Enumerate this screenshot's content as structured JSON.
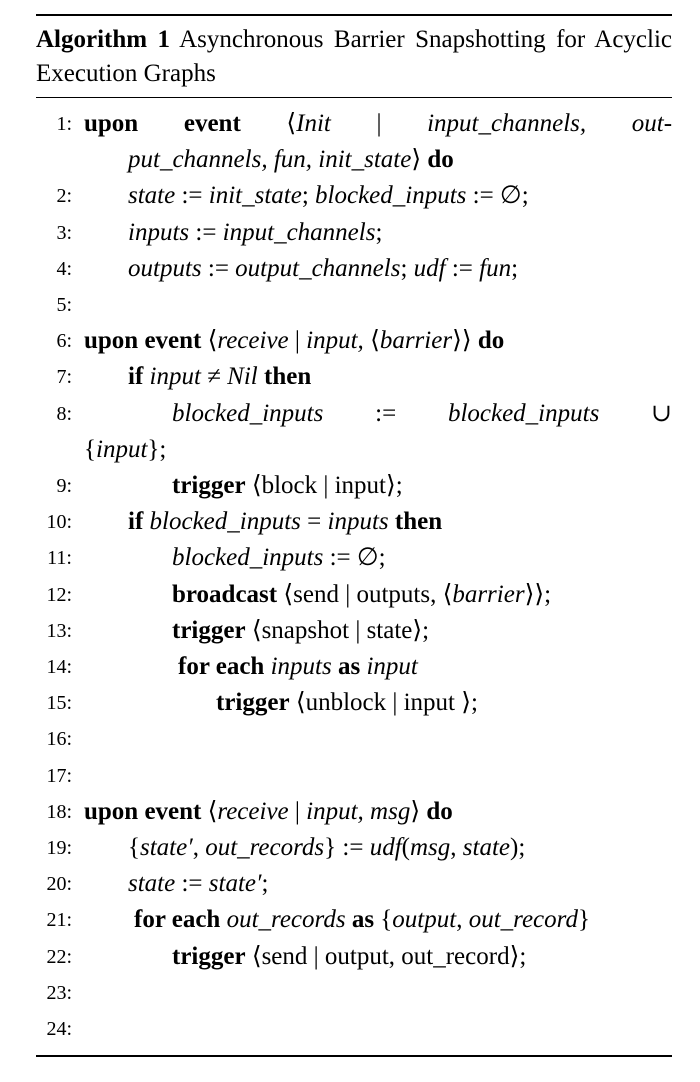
{
  "caption": {
    "label": "Algorithm 1",
    "title": "Asynchronous Barrier Snapshotting for Acyclic Execution Graphs"
  },
  "lines": [
    {
      "num": "1:",
      "indent": 0,
      "html_segments": [
        [
          "kw",
          "upon"
        ],
        [
          "sp",
          " "
        ],
        [
          "kw",
          "event"
        ],
        [
          "sp",
          " "
        ],
        [
          "t",
          "⟨"
        ],
        [
          "it",
          "Init"
        ],
        [
          "t",
          " | "
        ],
        [
          "it",
          "input_channels,"
        ],
        [
          "t",
          " "
        ],
        [
          "it",
          "out-"
        ]
      ],
      "wrap": [
        [
          "it",
          "put_channels, fun, init_state"
        ],
        [
          "t",
          "⟩ "
        ],
        [
          "kw",
          "do"
        ]
      ],
      "justify": true
    },
    {
      "num": "2:",
      "indent": 1,
      "html_segments": [
        [
          "it",
          "state"
        ],
        [
          "t",
          " := "
        ],
        [
          "it",
          "init_state"
        ],
        [
          "t",
          "; "
        ],
        [
          "it",
          "blocked_inputs"
        ],
        [
          "t",
          " := ∅;"
        ]
      ]
    },
    {
      "num": "3:",
      "indent": 1,
      "html_segments": [
        [
          "it",
          "inputs"
        ],
        [
          "t",
          " := "
        ],
        [
          "it",
          "input_channels"
        ],
        [
          "t",
          ";"
        ]
      ]
    },
    {
      "num": "4:",
      "indent": 1,
      "html_segments": [
        [
          "it",
          "outputs"
        ],
        [
          "t",
          " := "
        ],
        [
          "it",
          "output_channels"
        ],
        [
          "t",
          "; "
        ],
        [
          "it",
          "udf"
        ],
        [
          "t",
          " := "
        ],
        [
          "it",
          "fun"
        ],
        [
          "t",
          ";"
        ]
      ]
    },
    {
      "num": "5:",
      "indent": 0,
      "html_segments": []
    },
    {
      "num": "6:",
      "indent": 0,
      "html_segments": [
        [
          "kw",
          "upon event"
        ],
        [
          "t",
          " ⟨"
        ],
        [
          "it",
          "receive"
        ],
        [
          "t",
          " | "
        ],
        [
          "it",
          "input, "
        ],
        [
          "t",
          "⟨"
        ],
        [
          "it",
          "barrier"
        ],
        [
          "t",
          "⟩⟩ "
        ],
        [
          "kw",
          "do"
        ]
      ]
    },
    {
      "num": "7:",
      "indent": 1,
      "html_segments": [
        [
          "kw",
          "if"
        ],
        [
          "t",
          " "
        ],
        [
          "it",
          "input"
        ],
        [
          "t",
          " ≠ "
        ],
        [
          "it",
          "Nil"
        ],
        [
          "t",
          " "
        ],
        [
          "kw",
          "then"
        ]
      ]
    },
    {
      "num": "8:",
      "indent": 2,
      "html_segments": [
        [
          "it",
          "blocked_inputs"
        ],
        [
          "t",
          " := "
        ],
        [
          "it",
          "blocked_inputs"
        ],
        [
          "t",
          " ∪"
        ]
      ],
      "wrap": [
        [
          "t",
          "{"
        ],
        [
          "it",
          "input"
        ],
        [
          "t",
          "};"
        ]
      ],
      "justify": true,
      "wrapIndent": -90
    },
    {
      "num": "9:",
      "indent": 2,
      "html_segments": [
        [
          "kw",
          "trigger"
        ],
        [
          "t",
          " ⟨block | input⟩;"
        ]
      ]
    },
    {
      "num": "10:",
      "indent": 1,
      "html_segments": [
        [
          "kw",
          "if"
        ],
        [
          "t",
          " "
        ],
        [
          "it",
          "blocked_inputs"
        ],
        [
          "t",
          " = "
        ],
        [
          "it",
          "inputs"
        ],
        [
          "t",
          " "
        ],
        [
          "kw",
          "then"
        ]
      ]
    },
    {
      "num": "11:",
      "indent": 2,
      "html_segments": [
        [
          "it",
          "blocked_inputs"
        ],
        [
          "t",
          " := ∅;"
        ]
      ]
    },
    {
      "num": "12:",
      "indent": 2,
      "html_segments": [
        [
          "kw",
          "broadcast"
        ],
        [
          "t",
          " ⟨send | outputs, ⟨"
        ],
        [
          "it",
          "barrier"
        ],
        [
          "t",
          "⟩⟩;"
        ]
      ]
    },
    {
      "num": "13:",
      "indent": 2,
      "html_segments": [
        [
          "kw",
          "trigger"
        ],
        [
          "t",
          " ⟨snapshot | state⟩;"
        ]
      ]
    },
    {
      "num": "14:",
      "indent": 2,
      "extra": 6,
      "html_segments": [
        [
          "kw",
          "for each"
        ],
        [
          "t",
          " "
        ],
        [
          "it",
          "inputs"
        ],
        [
          "t",
          " "
        ],
        [
          "kw",
          "as"
        ],
        [
          "t",
          " "
        ],
        [
          "it",
          "input"
        ]
      ]
    },
    {
      "num": "15:",
      "indent": 3,
      "html_segments": [
        [
          "kw",
          "trigger"
        ],
        [
          "t",
          " ⟨unblock | input ⟩;"
        ]
      ]
    },
    {
      "num": "16:",
      "indent": 0,
      "html_segments": []
    },
    {
      "num": "17:",
      "indent": 0,
      "html_segments": []
    },
    {
      "num": "18:",
      "indent": 0,
      "html_segments": [
        [
          "kw",
          "upon event"
        ],
        [
          "t",
          " ⟨"
        ],
        [
          "it",
          "receive"
        ],
        [
          "t",
          " | "
        ],
        [
          "it",
          "input, msg"
        ],
        [
          "t",
          "⟩ "
        ],
        [
          "kw",
          "do"
        ]
      ]
    },
    {
      "num": "19:",
      "indent": 1,
      "html_segments": [
        [
          "t",
          "{"
        ],
        [
          "it",
          "state′"
        ],
        [
          "t",
          ", "
        ],
        [
          "it",
          "out_records"
        ],
        [
          "t",
          "} := "
        ],
        [
          "it",
          "udf"
        ],
        [
          "t",
          "("
        ],
        [
          "it",
          "msg"
        ],
        [
          "t",
          ", "
        ],
        [
          "it",
          "state"
        ],
        [
          "t",
          ");"
        ]
      ]
    },
    {
      "num": "20:",
      "indent": 1,
      "html_segments": [
        [
          "it",
          "state"
        ],
        [
          "t",
          " := "
        ],
        [
          "it",
          "state′"
        ],
        [
          "t",
          ";"
        ]
      ]
    },
    {
      "num": "21:",
      "indent": 1,
      "extra": 6,
      "html_segments": [
        [
          "kw",
          "for each"
        ],
        [
          "t",
          " "
        ],
        [
          "it",
          "out_records"
        ],
        [
          "t",
          " "
        ],
        [
          "kw",
          "as"
        ],
        [
          "t",
          " {"
        ],
        [
          "it",
          "output"
        ],
        [
          "t",
          ", "
        ],
        [
          "it",
          "out_record"
        ],
        [
          "t",
          "}"
        ]
      ]
    },
    {
      "num": "22:",
      "indent": 2,
      "html_segments": [
        [
          "kw",
          "trigger"
        ],
        [
          "t",
          " ⟨send | output, out_record⟩;"
        ]
      ]
    },
    {
      "num": "23:",
      "indent": 0,
      "html_segments": []
    },
    {
      "num": "24:",
      "indent": 0,
      "html_segments": []
    }
  ]
}
